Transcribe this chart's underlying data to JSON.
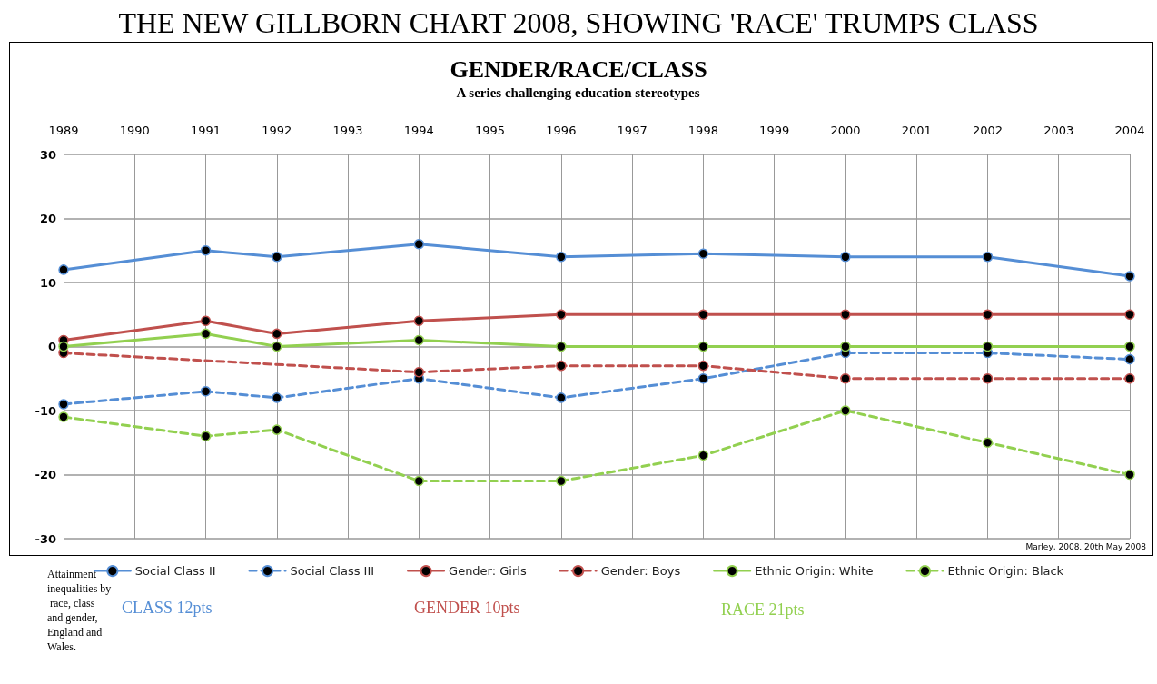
{
  "chart_data": {
    "type": "line",
    "title": "THE NEW GILLBORN CHART 2008, SHOWING 'RACE' TRUMPS CLASS",
    "subtitle": "GENDER/RACE/CLASS",
    "categories": [
      "1989",
      "1990",
      "1991",
      "1992",
      "1993",
      "1994",
      "1995",
      "1996",
      "1997",
      "1998",
      "1999",
      "2000",
      "2001",
      "2002",
      "2003",
      "2004"
    ],
    "series": [
      {
        "name": "Social Class II",
        "color": "#558ed5",
        "line_style": "solid",
        "values": [
          12,
          null,
          15,
          14,
          null,
          16,
          null,
          14,
          null,
          14.5,
          null,
          14,
          null,
          14,
          null,
          11
        ]
      },
      {
        "name": "Social Class III",
        "color": "#558ed5",
        "line_style": "dashed",
        "values": [
          -9,
          null,
          -7,
          -8,
          null,
          -5,
          null,
          -8,
          null,
          -5,
          null,
          -1,
          null,
          -1,
          null,
          -2
        ]
      },
      {
        "name": "Gender: Girls",
        "color": "#c0504d",
        "line_style": "solid",
        "values": [
          1,
          null,
          4,
          2,
          null,
          4,
          null,
          5,
          null,
          5,
          null,
          5,
          null,
          5,
          null,
          5
        ]
      },
      {
        "name": "Gender: Boys",
        "color": "#c0504d",
        "line_style": "dashed",
        "values": [
          -1,
          null,
          null,
          null,
          null,
          -4,
          null,
          -3,
          null,
          -3,
          null,
          -5,
          null,
          -5,
          null,
          -5
        ]
      },
      {
        "name": "Ethnic Origin: White",
        "color": "#92d050",
        "line_style": "solid",
        "values": [
          0,
          null,
          2,
          0,
          null,
          1,
          null,
          0,
          null,
          0,
          null,
          0,
          null,
          0,
          null,
          0
        ]
      },
      {
        "name": "Ethnic Origin: Black",
        "color": "#92d050",
        "line_style": "dashed",
        "values": [
          -11,
          null,
          -14,
          -13,
          null,
          -21,
          null,
          -21,
          null,
          -17,
          null,
          -10,
          null,
          -15,
          null,
          -20
        ]
      }
    ],
    "ylim": [
      -30,
      30
    ],
    "yticks": [
      -30,
      -20,
      -10,
      0,
      10,
      20,
      30
    ],
    "grid": true,
    "legend": "bottom",
    "marker": "circle",
    "annotations": [
      "A series challenging education stereotypes",
      "Marley, 2008. 20th May 2008",
      "Attainment inequalities by race, class and gender, England and Wales.",
      "CLASS 12pts",
      "GENDER 10pts",
      "RACE 21pts"
    ]
  }
}
